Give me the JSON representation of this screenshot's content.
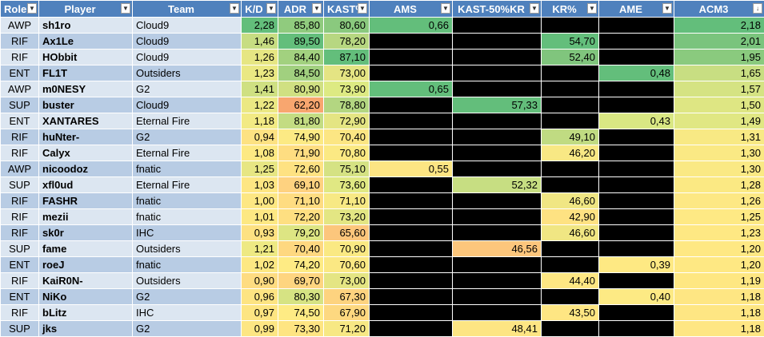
{
  "headers": [
    {
      "key": "role",
      "label": "Role",
      "icon": "dropdown-icon"
    },
    {
      "key": "player",
      "label": "Player",
      "icon": "dropdown-icon"
    },
    {
      "key": "team",
      "label": "Team",
      "icon": "dropdown-icon"
    },
    {
      "key": "kd",
      "label": "K/D",
      "icon": "dropdown-icon"
    },
    {
      "key": "adr",
      "label": "ADR",
      "icon": "dropdown-icon"
    },
    {
      "key": "kast",
      "label": "KAST%",
      "icon": "dropdown-icon"
    },
    {
      "key": "ams",
      "label": "AMS",
      "icon": "dropdown-icon"
    },
    {
      "key": "kast50",
      "label": "KAST-50%KR",
      "icon": "dropdown-icon"
    },
    {
      "key": "kr",
      "label": "KR%",
      "icon": "dropdown-icon"
    },
    {
      "key": "ame",
      "label": "AME",
      "icon": "dropdown-icon"
    },
    {
      "key": "acm3",
      "label": "ACM3",
      "icon": "sort-descending-icon"
    }
  ],
  "rows": [
    {
      "role": "AWP",
      "player": "sh1ro",
      "team": "Cloud9",
      "kd": "2,28",
      "adr": "85,80",
      "kast": "80,60",
      "ams": "0,66",
      "kast50": "",
      "kr": "",
      "ame": "",
      "acm3": "2,18",
      "c": [
        "#63be7b",
        "#90cb7e",
        "#8ac97e",
        "#63be7b",
        "#000000",
        "#000000",
        "#000000",
        "#63be7b"
      ]
    },
    {
      "role": "RIF",
      "player": "Ax1Le",
      "team": "Cloud9",
      "kd": "1,46",
      "adr": "89,50",
      "kast": "78,20",
      "ams": "",
      "kast50": "",
      "kr": "54,70",
      "ame": "",
      "acm3": "2,01",
      "c": [
        "#c7dd82",
        "#63be7b",
        "#b7d781",
        "#000000",
        "#000000",
        "#63be7b",
        "#000000",
        "#7ac47d"
      ]
    },
    {
      "role": "RIF",
      "player": "HObbit",
      "team": "Cloud9",
      "kd": "1,26",
      "adr": "84,40",
      "kast": "87,10",
      "ams": "",
      "kast50": "",
      "kr": "52,40",
      "ame": "",
      "acm3": "1,95",
      "c": [
        "#e6e683",
        "#a2d17f",
        "#63be7b",
        "#000000",
        "#000000",
        "#80c57d",
        "#000000",
        "#8aca7e"
      ]
    },
    {
      "role": "ENT",
      "player": "FL1T",
      "team": "Outsiders",
      "kd": "1,23",
      "adr": "84,50",
      "kast": "73,00",
      "ams": "",
      "kast50": "",
      "kr": "",
      "ame": "0,48",
      "acm3": "1,65",
      "c": [
        "#eae883",
        "#a1d07f",
        "#e4e483",
        "#000000",
        "#000000",
        "#000000",
        "#63be7b",
        "#c8de82"
      ]
    },
    {
      "role": "AWP",
      "player": "m0NESY",
      "team": "G2",
      "kd": "1,41",
      "adr": "80,90",
      "kast": "73,90",
      "ams": "0,65",
      "kast50": "",
      "kr": "",
      "ame": "",
      "acm3": "1,57",
      "c": [
        "#cfe082",
        "#d0e082",
        "#ddea83",
        "#63be7b",
        "#000000",
        "#000000",
        "#000000",
        "#d5e383"
      ]
    },
    {
      "role": "SUP",
      "player": "buster",
      "team": "Cloud9",
      "kd": "1,22",
      "adr": "62,20",
      "kast": "78,80",
      "ams": "",
      "kast50": "57,33",
      "kr": "",
      "ame": "",
      "acm3": "1,50",
      "c": [
        "#ebe883",
        "#f8a66f",
        "#b3d681",
        "#000000",
        "#63be7b",
        "#000000",
        "#000000",
        "#dee683"
      ]
    },
    {
      "role": "ENT",
      "player": "XANTARES",
      "team": "Eternal Fire",
      "kd": "1,18",
      "adr": "81,80",
      "kast": "72,90",
      "ams": "",
      "kast50": "",
      "kr": "",
      "ame": "0,43",
      "acm3": "1,49",
      "c": [
        "#f2ea84",
        "#c3dc82",
        "#e4e583",
        "#000000",
        "#000000",
        "#000000",
        "#d9e783",
        "#e0e783"
      ]
    },
    {
      "role": "RIF",
      "player": "huNter-",
      "team": "G2",
      "kd": "0,94",
      "adr": "74,90",
      "kast": "70,40",
      "ams": "",
      "kast50": "",
      "kr": "49,10",
      "ame": "",
      "acm3": "1,31",
      "c": [
        "#fde282",
        "#fcea84",
        "#fce683",
        "#000000",
        "#000000",
        "#c0db82",
        "#000000",
        "#f8e984"
      ]
    },
    {
      "role": "RIF",
      "player": "Calyx",
      "team": "Eternal Fire",
      "kd": "1,08",
      "adr": "71,90",
      "kast": "70,80",
      "ams": "",
      "kast50": "",
      "kr": "46,20",
      "ame": "",
      "acm3": "1,30",
      "c": [
        "#fde983",
        "#fedd81",
        "#fbe983",
        "#000000",
        "#000000",
        "#f8e884",
        "#000000",
        "#fae984"
      ]
    },
    {
      "role": "AWP",
      "player": "nicoodoz",
      "team": "fnatic",
      "kd": "1,25",
      "adr": "72,60",
      "kast": "75,10",
      "ams": "0,55",
      "kast50": "",
      "kr": "",
      "ame": "",
      "acm3": "1,30",
      "c": [
        "#e7e683",
        "#fee282",
        "#d5e283",
        "#fce583",
        "#000000",
        "#000000",
        "#000000",
        "#fae984"
      ]
    },
    {
      "role": "SUP",
      "player": "xfl0ud",
      "team": "Eternal Fire",
      "kd": "1,03",
      "adr": "69,10",
      "kast": "73,60",
      "ams": "",
      "kast50": "52,32",
      "kr": "",
      "ame": "",
      "acm3": "1,28",
      "c": [
        "#fee683",
        "#fed280",
        "#e0e883",
        "#000000",
        "#c7de82",
        "#000000",
        "#000000",
        "#fbe983"
      ]
    },
    {
      "role": "RIF",
      "player": "FASHR",
      "team": "fnatic",
      "kd": "1,00",
      "adr": "71,10",
      "kast": "71,10",
      "ams": "",
      "kast50": "",
      "kr": "46,60",
      "ame": "",
      "acm3": "1,26",
      "c": [
        "#fde783",
        "#fedc81",
        "#f7e984",
        "#000000",
        "#000000",
        "#f0e683",
        "#000000",
        "#fde884"
      ]
    },
    {
      "role": "RIF",
      "player": "mezii",
      "team": "fnatic",
      "kd": "1,01",
      "adr": "72,20",
      "kast": "73,20",
      "ams": "",
      "kast50": "",
      "kr": "42,90",
      "ame": "",
      "acm3": "1,25",
      "c": [
        "#fde883",
        "#fedf81",
        "#e3e683",
        "#000000",
        "#000000",
        "#fee282",
        "#000000",
        "#fee984"
      ]
    },
    {
      "role": "RIF",
      "player": "sk0r",
      "team": "IHC",
      "kd": "0,93",
      "adr": "79,20",
      "kast": "65,60",
      "ams": "",
      "kast50": "",
      "kr": "46,60",
      "ame": "",
      "acm3": "1,23",
      "c": [
        "#fde182",
        "#dde583",
        "#fcc67c",
        "#000000",
        "#000000",
        "#f0e683",
        "#000000",
        "#fee883"
      ]
    },
    {
      "role": "SUP",
      "player": "fame",
      "team": "Outsiders",
      "kd": "1,21",
      "adr": "70,40",
      "kast": "70,90",
      "ams": "",
      "kast50": "46,56",
      "kr": "",
      "ame": "",
      "acm3": "1,20",
      "c": [
        "#eee983",
        "#fed880",
        "#fae983",
        "#000000",
        "#fcc67c",
        "#000000",
        "#000000",
        "#fee883"
      ]
    },
    {
      "role": "ENT",
      "player": "roeJ",
      "team": "fnatic",
      "kd": "1,02",
      "adr": "74,20",
      "kast": "70,60",
      "ams": "",
      "kast50": "",
      "kr": "",
      "ame": "0,39",
      "acm3": "1,20",
      "c": [
        "#fde883",
        "#feeb84",
        "#fbe883",
        "#000000",
        "#000000",
        "#000000",
        "#fee983",
        "#fee883"
      ]
    },
    {
      "role": "RIF",
      "player": "KaiR0N-",
      "team": "Outsiders",
      "kd": "0,90",
      "adr": "69,70",
      "kast": "73,00",
      "ams": "",
      "kast50": "",
      "kr": "44,40",
      "ame": "",
      "acm3": "1,19",
      "c": [
        "#fedc81",
        "#fed580",
        "#e4e583",
        "#000000",
        "#000000",
        "#fee783",
        "#000000",
        "#fee782"
      ]
    },
    {
      "role": "ENT",
      "player": "NiKo",
      "team": "G2",
      "kd": "0,96",
      "adr": "80,30",
      "kast": "67,30",
      "ams": "",
      "kast50": "",
      "kr": "",
      "ame": "0,40",
      "acm3": "1,18",
      "c": [
        "#fde482",
        "#d6e383",
        "#fdd37f",
        "#000000",
        "#000000",
        "#000000",
        "#fdea84",
        "#fee683"
      ]
    },
    {
      "role": "RIF",
      "player": "bLitz",
      "team": "IHC",
      "kd": "0,97",
      "adr": "74,50",
      "kast": "67,90",
      "ams": "",
      "kast50": "",
      "kr": "43,50",
      "ame": "",
      "acm3": "1,18",
      "c": [
        "#fde582",
        "#feeb84",
        "#fdd880",
        "#000000",
        "#000000",
        "#fee683",
        "#000000",
        "#fee683"
      ]
    },
    {
      "role": "SUP",
      "player": "jks",
      "team": "G2",
      "kd": "0,99",
      "adr": "73,30",
      "kast": "71,20",
      "ams": "",
      "kast50": "48,41",
      "kr": "",
      "ame": "",
      "acm3": "1,18",
      "c": [
        "#fde683",
        "#fee582",
        "#f7e884",
        "#000000",
        "#fde583",
        "#000000",
        "#000000",
        "#fee683"
      ]
    }
  ]
}
